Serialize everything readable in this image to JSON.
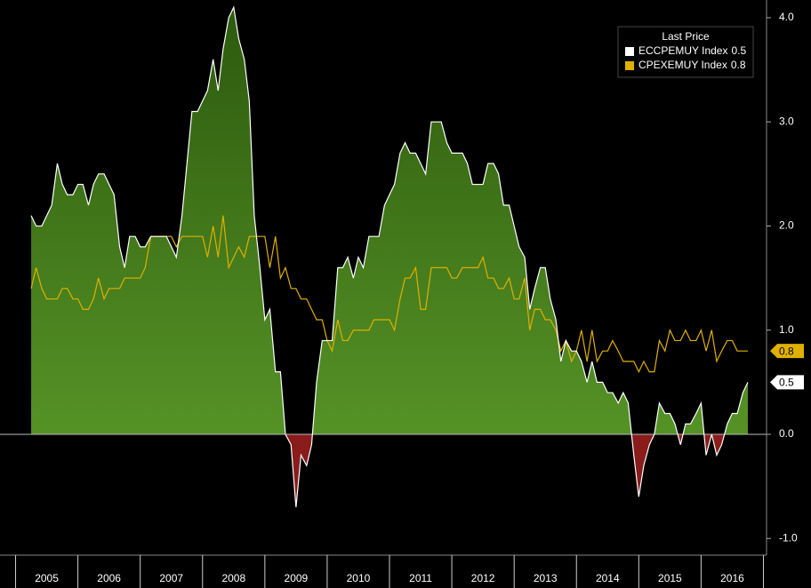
{
  "chart_data": {
    "type": "area-line",
    "legend_title": "Last Price",
    "legend": "upper right",
    "fill_positive": [
      "#2d5a0e",
      "#5c9c2a"
    ],
    "fill_negative": "#8a1c1c",
    "xlim": [
      2004.75,
      2017.05
    ],
    "xticks": [
      {
        "value": 2005.5,
        "label": "2005"
      },
      {
        "value": 2006.5,
        "label": "2006"
      },
      {
        "value": 2007.5,
        "label": "2007"
      },
      {
        "value": 2008.5,
        "label": "2008"
      },
      {
        "value": 2009.5,
        "label": "2009"
      },
      {
        "value": 2010.5,
        "label": "2010"
      },
      {
        "value": 2011.5,
        "label": "2011"
      },
      {
        "value": 2012.5,
        "label": "2012"
      },
      {
        "value": 2013.5,
        "label": "2013"
      },
      {
        "value": 2014.5,
        "label": "2014"
      },
      {
        "value": 2015.5,
        "label": "2015"
      },
      {
        "value": 2016.5,
        "label": "2016"
      }
    ],
    "ylim": [
      -1.16,
      4.17
    ],
    "yticks": [
      {
        "value": -1,
        "label": "-1.0"
      },
      {
        "value": 0,
        "label": "0.0"
      },
      {
        "value": 1,
        "label": "1.0"
      },
      {
        "value": 2,
        "label": "2.0"
      },
      {
        "value": 3,
        "label": "3.0"
      },
      {
        "value": 4,
        "label": "4.0"
      }
    ],
    "x": [
      2005.25,
      2005.33,
      2005.42,
      2005.5,
      2005.58,
      2005.67,
      2005.75,
      2005.83,
      2005.92,
      2006.0,
      2006.08,
      2006.17,
      2006.25,
      2006.33,
      2006.42,
      2006.5,
      2006.58,
      2006.67,
      2006.75,
      2006.83,
      2006.92,
      2007.0,
      2007.08,
      2007.17,
      2007.25,
      2007.33,
      2007.42,
      2007.5,
      2007.58,
      2007.67,
      2007.75,
      2007.83,
      2007.92,
      2008.0,
      2008.08,
      2008.17,
      2008.25,
      2008.33,
      2008.42,
      2008.5,
      2008.58,
      2008.67,
      2008.75,
      2008.83,
      2008.92,
      2009.0,
      2009.08,
      2009.17,
      2009.25,
      2009.33,
      2009.42,
      2009.5,
      2009.58,
      2009.67,
      2009.75,
      2009.83,
      2009.92,
      2010.0,
      2010.08,
      2010.17,
      2010.25,
      2010.33,
      2010.42,
      2010.5,
      2010.58,
      2010.67,
      2010.75,
      2010.83,
      2010.92,
      2011.0,
      2011.08,
      2011.17,
      2011.25,
      2011.33,
      2011.42,
      2011.5,
      2011.58,
      2011.67,
      2011.75,
      2011.83,
      2011.92,
      2012.0,
      2012.08,
      2012.17,
      2012.25,
      2012.33,
      2012.42,
      2012.5,
      2012.58,
      2012.67,
      2012.75,
      2012.83,
      2012.92,
      2013.0,
      2013.08,
      2013.17,
      2013.25,
      2013.33,
      2013.42,
      2013.5,
      2013.58,
      2013.67,
      2013.75,
      2013.83,
      2013.92,
      2014.0,
      2014.08,
      2014.17,
      2014.25,
      2014.33,
      2014.42,
      2014.5,
      2014.58,
      2014.67,
      2014.75,
      2014.83,
      2014.92,
      2015.0,
      2015.08,
      2015.17,
      2015.25,
      2015.33,
      2015.42,
      2015.5,
      2015.58,
      2015.67,
      2015.75,
      2015.83,
      2015.92,
      2016.0,
      2016.08,
      2016.17,
      2016.25,
      2016.33,
      2016.42,
      2016.5,
      2016.58,
      2016.67,
      2016.75
    ],
    "series": [
      {
        "name": "ECCPEMUY Index",
        "color": "#ffffff",
        "area": true,
        "label_box": "#ffffff",
        "label_text": "#000000",
        "values": [
          2.1,
          2.0,
          2.0,
          2.1,
          2.2,
          2.6,
          2.4,
          2.3,
          2.3,
          2.4,
          2.4,
          2.2,
          2.4,
          2.5,
          2.5,
          2.4,
          2.3,
          1.8,
          1.6,
          1.9,
          1.9,
          1.8,
          1.8,
          1.9,
          1.9,
          1.9,
          1.9,
          1.8,
          1.7,
          2.1,
          2.6,
          3.1,
          3.1,
          3.2,
          3.3,
          3.6,
          3.3,
          3.7,
          4.0,
          4.1,
          3.8,
          3.6,
          3.2,
          2.1,
          1.6,
          1.1,
          1.2,
          0.6,
          0.6,
          0.0,
          -0.1,
          -0.7,
          -0.2,
          -0.3,
          -0.1,
          0.5,
          0.9,
          0.9,
          0.9,
          1.6,
          1.6,
          1.7,
          1.5,
          1.7,
          1.6,
          1.9,
          1.9,
          1.9,
          2.2,
          2.3,
          2.4,
          2.7,
          2.8,
          2.7,
          2.7,
          2.6,
          2.5,
          3.0,
          3.0,
          3.0,
          2.8,
          2.7,
          2.7,
          2.7,
          2.6,
          2.4,
          2.4,
          2.4,
          2.6,
          2.6,
          2.5,
          2.2,
          2.2,
          2.0,
          1.8,
          1.7,
          1.2,
          1.4,
          1.6,
          1.6,
          1.3,
          1.1,
          0.7,
          0.9,
          0.8,
          0.8,
          0.7,
          0.5,
          0.7,
          0.5,
          0.5,
          0.4,
          0.4,
          0.3,
          0.4,
          0.3,
          -0.2,
          -0.6,
          -0.3,
          -0.1,
          0.0,
          0.3,
          0.2,
          0.2,
          0.1,
          -0.1,
          0.1,
          0.1,
          0.2,
          0.3,
          -0.2,
          0.0,
          -0.2,
          -0.1,
          0.1,
          0.2,
          0.2,
          0.4,
          0.5
        ]
      },
      {
        "name": "CPEXEMUY Index",
        "color": "#e0b000",
        "area": false,
        "label_box": "#e0b000",
        "label_text": "#000000",
        "values": [
          1.4,
          1.6,
          1.4,
          1.3,
          1.3,
          1.3,
          1.4,
          1.4,
          1.3,
          1.3,
          1.2,
          1.2,
          1.3,
          1.5,
          1.3,
          1.4,
          1.4,
          1.4,
          1.5,
          1.5,
          1.5,
          1.5,
          1.6,
          1.9,
          1.9,
          1.9,
          1.9,
          1.9,
          1.8,
          1.9,
          1.9,
          1.9,
          1.9,
          1.9,
          1.7,
          2.0,
          1.7,
          2.1,
          1.6,
          1.7,
          1.8,
          1.7,
          1.9,
          1.9,
          1.9,
          1.9,
          1.6,
          1.9,
          1.5,
          1.6,
          1.4,
          1.4,
          1.3,
          1.3,
          1.2,
          1.1,
          1.1,
          0.9,
          0.8,
          1.1,
          0.9,
          0.9,
          1.0,
          1.0,
          1.0,
          1.0,
          1.1,
          1.1,
          1.1,
          1.1,
          1.0,
          1.3,
          1.5,
          1.5,
          1.6,
          1.2,
          1.2,
          1.6,
          1.6,
          1.6,
          1.6,
          1.5,
          1.5,
          1.6,
          1.6,
          1.6,
          1.6,
          1.7,
          1.5,
          1.5,
          1.4,
          1.4,
          1.5,
          1.3,
          1.3,
          1.5,
          1.0,
          1.2,
          1.2,
          1.1,
          1.1,
          1.0,
          0.8,
          0.9,
          0.7,
          0.8,
          1.0,
          0.7,
          1.0,
          0.7,
          0.8,
          0.8,
          0.9,
          0.8,
          0.7,
          0.7,
          0.7,
          0.6,
          0.7,
          0.6,
          0.6,
          0.9,
          0.8,
          1.0,
          0.9,
          0.9,
          1.0,
          0.9,
          0.9,
          1.0,
          0.8,
          1.0,
          0.7,
          0.8,
          0.9,
          0.9,
          0.8,
          0.8,
          0.8
        ]
      }
    ]
  }
}
